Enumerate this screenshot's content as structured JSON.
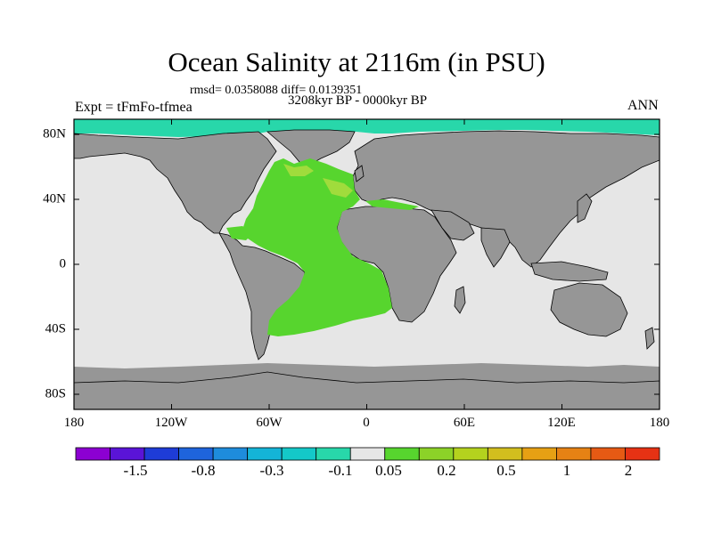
{
  "figure": {
    "title": "Ocean Salinity at 2116m (in PSU)",
    "stats": "rmsd= 0.0358088 diff= 0.0139351",
    "period": "3208kyr BP - 0000kyr BP",
    "experiment": "Expt = tFmFo-tfmea",
    "season": "ANN"
  },
  "map": {
    "projection": "cylindrical equidistant",
    "lon_ticks": [
      "180",
      "120W",
      "60W",
      "0",
      "60E",
      "120E",
      "180"
    ],
    "lat_ticks": [
      "80N",
      "40N",
      "0",
      "40S",
      "80S"
    ],
    "land_color": "#969696",
    "no_change_ocean_color": "#e6e6e6",
    "positive_anomaly_color": "#57d52e",
    "positive_anomaly_light_color": "#a0dc3c",
    "arctic_negative_color": "#28d7aa"
  },
  "colorbar": {
    "colors": [
      "#8c00d2",
      "#5a14d7",
      "#1e3cd7",
      "#1e64dc",
      "#1e8cdc",
      "#14b4d7",
      "#14c8c8",
      "#28d7aa",
      "#e6e6e6",
      "#57d52e",
      "#8cd228",
      "#b4d21e",
      "#d2be1e",
      "#e6a014",
      "#e68214",
      "#e65a14",
      "#e63214"
    ],
    "labels": [
      "-1.5",
      "-0.8",
      "-0.3",
      "-0.1",
      "0.05",
      "0.2",
      "0.5",
      "1",
      "2"
    ]
  }
}
